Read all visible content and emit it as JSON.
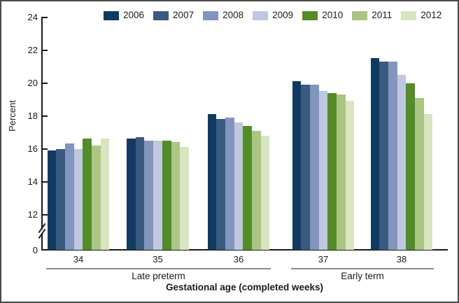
{
  "chart_data": {
    "type": "bar",
    "title": "",
    "ylabel": "Percent",
    "xlabel": "Gestational age (completed weeks)",
    "categories": [
      "34",
      "35",
      "36",
      "37",
      "38"
    ],
    "category_groups": [
      {
        "label": "Late preterm",
        "from": 0,
        "to": 2
      },
      {
        "label": "Early term",
        "from": 3,
        "to": 4
      }
    ],
    "series": [
      {
        "name": "2006",
        "color": "#103a62",
        "values": [
          15.9,
          16.6,
          18.1,
          20.1,
          21.5
        ]
      },
      {
        "name": "2007",
        "color": "#3a5a80",
        "values": [
          16.0,
          16.7,
          17.8,
          19.9,
          21.3
        ]
      },
      {
        "name": "2008",
        "color": "#8195be",
        "values": [
          16.3,
          16.5,
          17.9,
          19.9,
          21.3
        ]
      },
      {
        "name": "2009",
        "color": "#bfc8df",
        "values": [
          16.0,
          16.5,
          17.6,
          19.5,
          20.5
        ]
      },
      {
        "name": "2010",
        "color": "#548c2a",
        "values": [
          16.6,
          16.5,
          17.4,
          19.4,
          20.0
        ]
      },
      {
        "name": "2011",
        "color": "#abc584",
        "values": [
          16.2,
          16.4,
          17.1,
          19.3,
          19.1
        ]
      },
      {
        "name": "2012",
        "color": "#d8e5c0",
        "values": [
          16.6,
          16.1,
          16.8,
          18.9,
          18.1
        ]
      }
    ],
    "y_ticks": [
      0,
      12,
      14,
      16,
      18,
      20,
      22,
      24
    ],
    "y_tick_labels": [
      "0",
      "12",
      "14",
      "16",
      "18",
      "20",
      "22",
      "24"
    ],
    "axis_break_between": [
      0,
      12
    ],
    "ylim": [
      0,
      24
    ],
    "grid": false,
    "legend_position": "top"
  }
}
